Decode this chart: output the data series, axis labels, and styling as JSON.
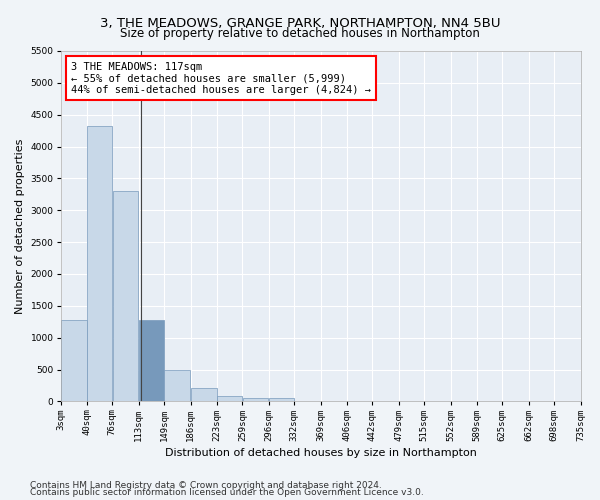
{
  "title1": "3, THE MEADOWS, GRANGE PARK, NORTHAMPTON, NN4 5BU",
  "title2": "Size of property relative to detached houses in Northampton",
  "xlabel": "Distribution of detached houses by size in Northampton",
  "ylabel": "Number of detached properties",
  "footnote1": "Contains HM Land Registry data © Crown copyright and database right 2024.",
  "footnote2": "Contains public sector information licensed under the Open Government Licence v3.0.",
  "annotation_line1": "3 THE MEADOWS: 117sqm",
  "annotation_line2": "← 55% of detached houses are smaller (5,999)",
  "annotation_line3": "44% of semi-detached houses are larger (4,824) →",
  "subject_value": 117,
  "bar_edges": [
    3,
    40,
    76,
    113,
    149,
    186,
    223,
    259,
    296,
    332,
    369,
    406,
    442,
    479,
    515,
    552,
    589,
    625,
    662,
    698,
    735
  ],
  "bar_heights": [
    1270,
    4330,
    3300,
    1280,
    490,
    215,
    85,
    60,
    50,
    0,
    0,
    0,
    0,
    0,
    0,
    0,
    0,
    0,
    0,
    0
  ],
  "bar_color": "#c8d8e8",
  "bar_edge_color": "#7799bb",
  "subject_bar_color": "#7799bb",
  "background_color": "#e8eef5",
  "grid_color": "#ffffff",
  "fig_facecolor": "#f0f4f8",
  "ylim": [
    0,
    5500
  ],
  "yticks": [
    0,
    500,
    1000,
    1500,
    2000,
    2500,
    3000,
    3500,
    4000,
    4500,
    5000,
    5500
  ],
  "title1_fontsize": 9.5,
  "title2_fontsize": 8.5,
  "xlabel_fontsize": 8,
  "ylabel_fontsize": 8,
  "annotation_fontsize": 7.5,
  "footnote_fontsize": 6.5,
  "tick_fontsize": 6.5
}
